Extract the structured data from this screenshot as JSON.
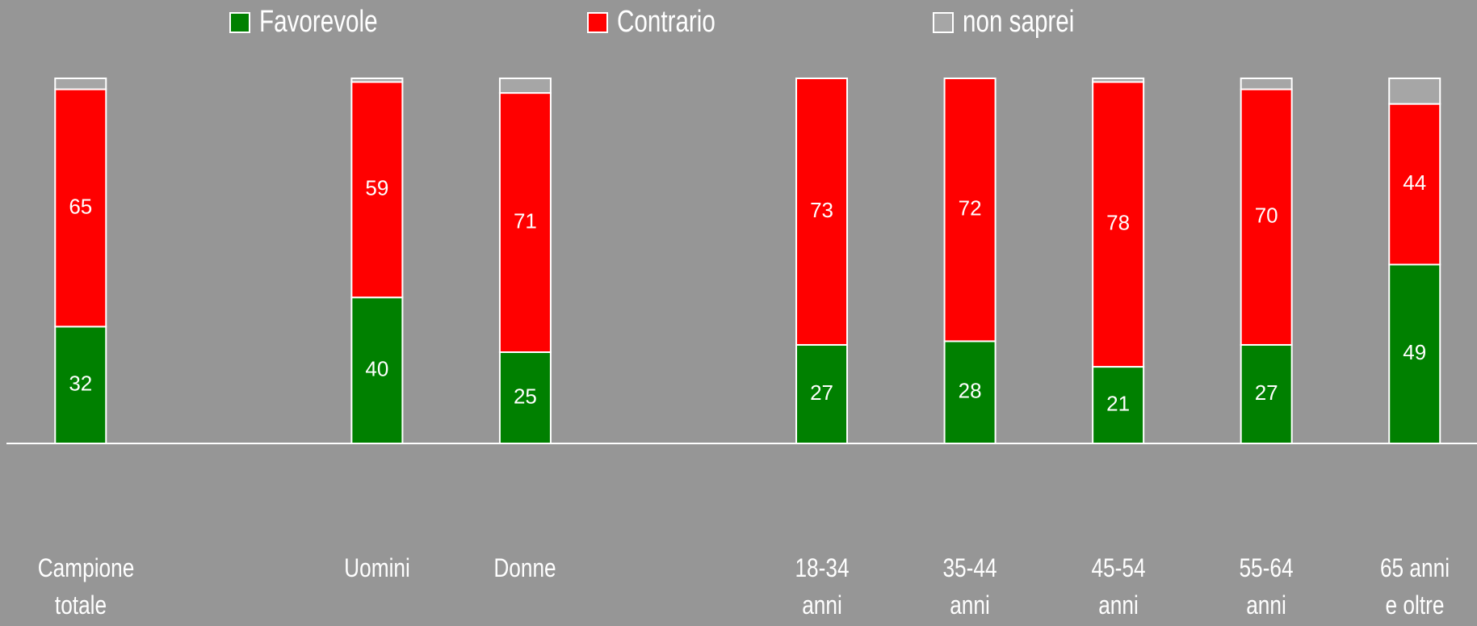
{
  "chart_data": {
    "type": "stacked_bar",
    "categories": [
      "Campione totale",
      null,
      "Uomini",
      "Donne",
      null,
      "18-34 anni",
      "35-44 anni",
      "45-54 anni",
      "55-64 anni",
      "65 anni e oltre"
    ],
    "series": [
      {
        "name": "Favorevole",
        "color": "#008000",
        "data_labels": true,
        "values": [
          32,
          null,
          40,
          25,
          null,
          27,
          28,
          21,
          27,
          49
        ]
      },
      {
        "name": "Contrario",
        "color": "#ff0000",
        "data_labels": true,
        "values": [
          65,
          null,
          59,
          71,
          null,
          73,
          72,
          78,
          70,
          44
        ]
      },
      {
        "name": "non saprei",
        "color": "#a6a6a6",
        "data_labels": false,
        "values": [
          3,
          null,
          1,
          4,
          null,
          0,
          0,
          1,
          3,
          7
        ]
      }
    ],
    "ylim": [
      0,
      100
    ],
    "legend": "top"
  }
}
